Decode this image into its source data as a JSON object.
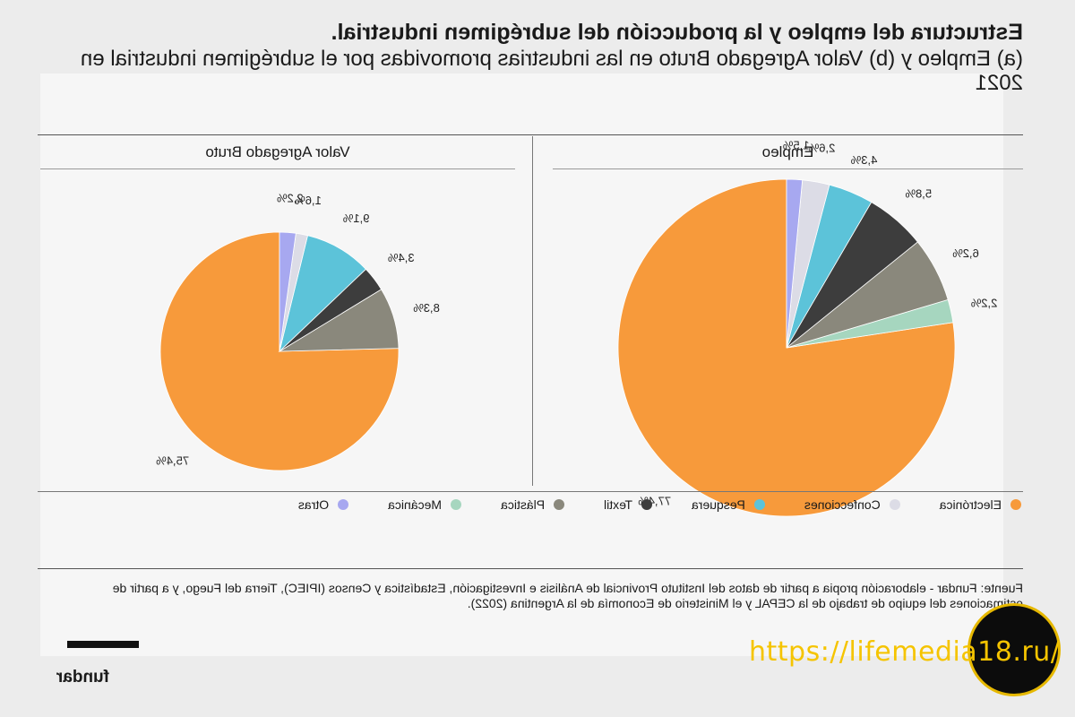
{
  "page": {
    "title_main": "Estructura del empleo y la producción del subrégimen industrial.",
    "title_sub": "(a) Empleo y (b) Valor Agregado Bruto en las industrias promovidas por el subrégimen industrial en 2021",
    "source": "Fuente: Fundar - elaboración propia a partir de datos del Instituto Provincial de Análisis e Investigación, Estadística y Censos (IPIEC), Tierra del Fuego, y a partir de estimaciones del equipo de trabajo de la CEPAL y el Ministerio de Economía de la Argentina (2022).",
    "brand": "fundar",
    "watermark": "https://lifemedia18.ru/"
  },
  "colors": {
    "Electrónica": "#f79a3b",
    "Confecciones": "#dcdce6",
    "Pesquera": "#5cc3d9",
    "Textil": "#3d3d3d",
    "Plástica": "#8a887c",
    "Mecánica": "#a6d6bf",
    "Otras": "#a7a8f0"
  },
  "legend": [
    "Electrónica",
    "Confecciones",
    "Pesquera",
    "Textil",
    "Plástica",
    "Mecánica",
    "Otras"
  ],
  "chart_data": [
    {
      "type": "pie",
      "title": "Empleo",
      "slices": [
        {
          "label": "Electrónica",
          "value": 77.4,
          "text": "77,4%"
        },
        {
          "label": "Mecánica",
          "value": 2.2,
          "text": "2,2%"
        },
        {
          "label": "Plástica",
          "value": 6.2,
          "text": "6,2%"
        },
        {
          "label": "Textil",
          "value": 5.8,
          "text": "5,8%"
        },
        {
          "label": "Pesquera",
          "value": 4.3,
          "text": "4,3%"
        },
        {
          "label": "Confecciones",
          "value": 2.6,
          "text": "2,6%"
        },
        {
          "label": "Otras",
          "value": 1.5,
          "text": "1,5%"
        }
      ]
    },
    {
      "type": "pie",
      "title": "Valor Agregado Bruto",
      "slices": [
        {
          "label": "Electrónica",
          "value": 75.4,
          "text": "75,4%"
        },
        {
          "label": "Plástica",
          "value": 8.3,
          "text": "8,3%"
        },
        {
          "label": "Textil",
          "value": 3.4,
          "text": "3,4%"
        },
        {
          "label": "Pesquera",
          "value": 9.1,
          "text": "9,1%"
        },
        {
          "label": "Confecciones",
          "value": 1.6,
          "text": "1,6%"
        },
        {
          "label": "Otras",
          "value": 2.2,
          "text": "2,2%"
        }
      ]
    }
  ]
}
